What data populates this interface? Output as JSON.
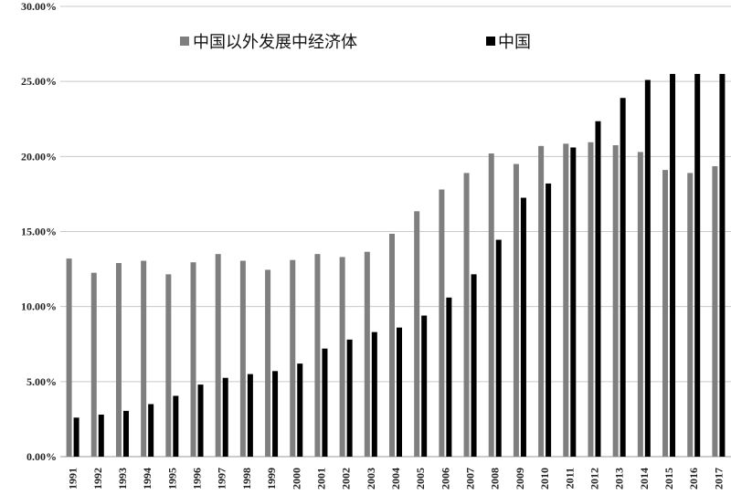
{
  "colors": {
    "series1": "#7f7f7f",
    "series2": "#000000",
    "grid": "#c9c9c9"
  },
  "chart_data": {
    "type": "bar",
    "categories": [
      "1991",
      "1992",
      "1993",
      "1994",
      "1995",
      "1996",
      "1997",
      "1998",
      "1999",
      "2000",
      "2001",
      "2002",
      "2003",
      "2004",
      "2005",
      "2006",
      "2007",
      "2008",
      "2009",
      "2010",
      "2011",
      "2012",
      "2013",
      "2014",
      "2015",
      "2016",
      "2017"
    ],
    "series": [
      {
        "name": "中国以外发展中经济体",
        "color": "#7f7f7f",
        "values": [
          13.2,
          12.25,
          12.9,
          13.05,
          12.15,
          12.95,
          13.5,
          13.05,
          12.45,
          13.1,
          13.5,
          13.3,
          13.65,
          14.85,
          16.35,
          17.8,
          18.9,
          20.2,
          19.5,
          20.7,
          20.85,
          20.95,
          20.75,
          20.3,
          19.1,
          18.9,
          19.35
        ]
      },
      {
        "name": "中国",
        "color": "#000000",
        "values": [
          2.6,
          2.8,
          3.05,
          3.5,
          4.05,
          4.8,
          5.25,
          5.5,
          5.7,
          6.2,
          7.2,
          7.8,
          8.3,
          8.6,
          9.4,
          10.6,
          12.15,
          14.45,
          17.25,
          18.2,
          20.6,
          22.35,
          23.9,
          25.1,
          25.5,
          25.5,
          25.5
        ]
      }
    ],
    "y_ticks": [
      "0.00%",
      "5.00%",
      "10.00%",
      "15.00%",
      "20.00%",
      "25.00%",
      "30.00%"
    ],
    "ylim": [
      0,
      30
    ],
    "grid": true,
    "legend_position": "top"
  }
}
